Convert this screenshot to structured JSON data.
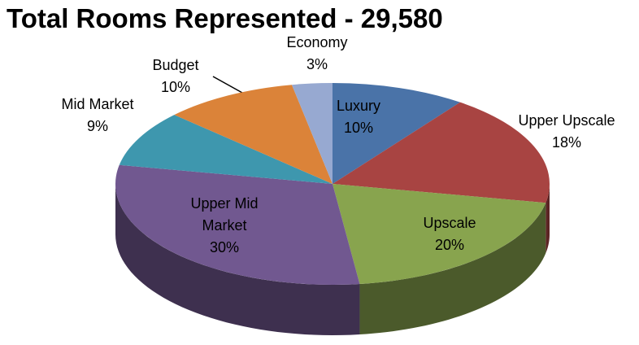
{
  "chart_data": {
    "type": "pie3d",
    "title": "Total Rooms Represented - 29,580",
    "categories": [
      "Luxury",
      "Upper Upscale",
      "Upscale",
      "Upper Mid Market",
      "Mid Market",
      "Budget",
      "Economy"
    ],
    "values": [
      10,
      18,
      20,
      30,
      9,
      10,
      3
    ],
    "value_labels": [
      "10%",
      "18%",
      "20%",
      "30%",
      "9%",
      "10%",
      "3%"
    ],
    "colors": [
      "#4a73a8",
      "#a84442",
      "#88a44e",
      "#715890",
      "#3e97ae",
      "#db8339",
      "#97a9d1"
    ]
  }
}
